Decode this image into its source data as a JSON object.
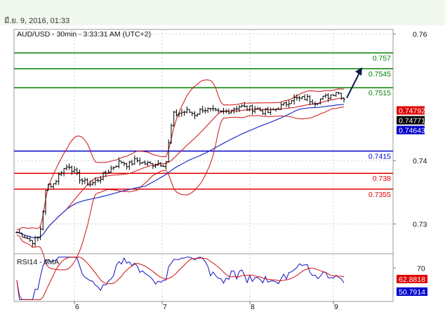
{
  "header": {
    "timestamp": "มี.ย. 9, 2016, 01:33"
  },
  "chart_data": {
    "type": "candlestick",
    "title": "AUD/USD - 30min - 3:33:31 AM (UTC+2)",
    "y_ticks": [
      "0.76",
      "0.74",
      "0.73"
    ],
    "y_tick_values": [
      0.76,
      0.74,
      0.73
    ],
    "ylim": [
      0.7253,
      0.7607
    ],
    "x_ticks": [
      "6",
      "7",
      "8",
      "9"
    ],
    "levels": [
      {
        "label": "0.757",
        "value": 0.757,
        "color": "#008000"
      },
      {
        "label": "0.7545",
        "value": 0.7545,
        "color": "#008000"
      },
      {
        "label": "0.7515",
        "value": 0.7515,
        "color": "#008000"
      },
      {
        "label": "0.7415",
        "value": 0.7415,
        "color": "#0000cc"
      },
      {
        "label": "0.738",
        "value": 0.738,
        "color": "#e00000"
      },
      {
        "label": "0.7355",
        "value": 0.7355,
        "color": "#e00000"
      }
    ],
    "price_tags": [
      {
        "label": "0.74792",
        "value": 0.74792,
        "bg": "#e00000",
        "fg": "#ffffff"
      },
      {
        "label": "0.74771",
        "value": 0.74771,
        "bg": "#000000",
        "fg": "#ffffff"
      },
      {
        "label": "0.74643",
        "value": 0.74643,
        "bg": "#0000cc",
        "fg": "#ffffff"
      }
    ],
    "close_path": [
      0.7287,
      0.7281,
      0.7272,
      0.7279,
      0.7361,
      0.7364,
      0.7384,
      0.7393,
      0.7378,
      0.7366,
      0.7363,
      0.7371,
      0.7381,
      0.7391,
      0.7399,
      0.7393,
      0.7401,
      0.7396,
      0.7394,
      0.7396,
      0.7394,
      0.7472,
      0.7476,
      0.7478,
      0.7473,
      0.7482,
      0.7479,
      0.7475,
      0.7477,
      0.7482,
      0.7486,
      0.7482,
      0.7483,
      0.7478,
      0.7476,
      0.7483,
      0.7488,
      0.7498,
      0.7497,
      0.7499,
      0.7492,
      0.7498,
      0.7502,
      0.751,
      0.7498
    ],
    "rsi": {
      "label": "RSI14 - 9MA",
      "tick": "70",
      "tags": [
        {
          "label": "62.8818",
          "value": 62.88,
          "bg": "#e00000",
          "fg": "#ffffff"
        },
        {
          "label": "50.7914",
          "value": 50.79,
          "bg": "#0000cc",
          "fg": "#ffffff"
        }
      ]
    }
  }
}
